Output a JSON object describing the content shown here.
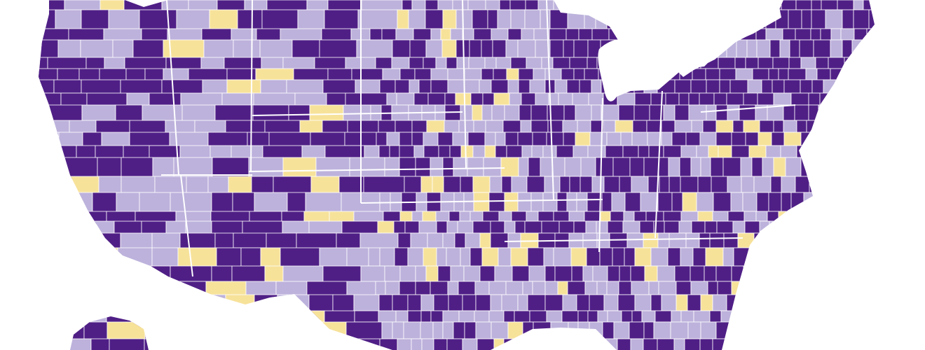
{
  "map": {
    "type": "choropleth",
    "region": "contiguous-us-counties",
    "colors": {
      "dark": "#4f1f86",
      "light": "#bdb2dc",
      "highlight": "#f7e29a",
      "border": "#ffffff",
      "background": "#ffffff"
    },
    "category_share": {
      "dark": 0.46,
      "light": 0.47,
      "highlight": 0.07
    }
  }
}
